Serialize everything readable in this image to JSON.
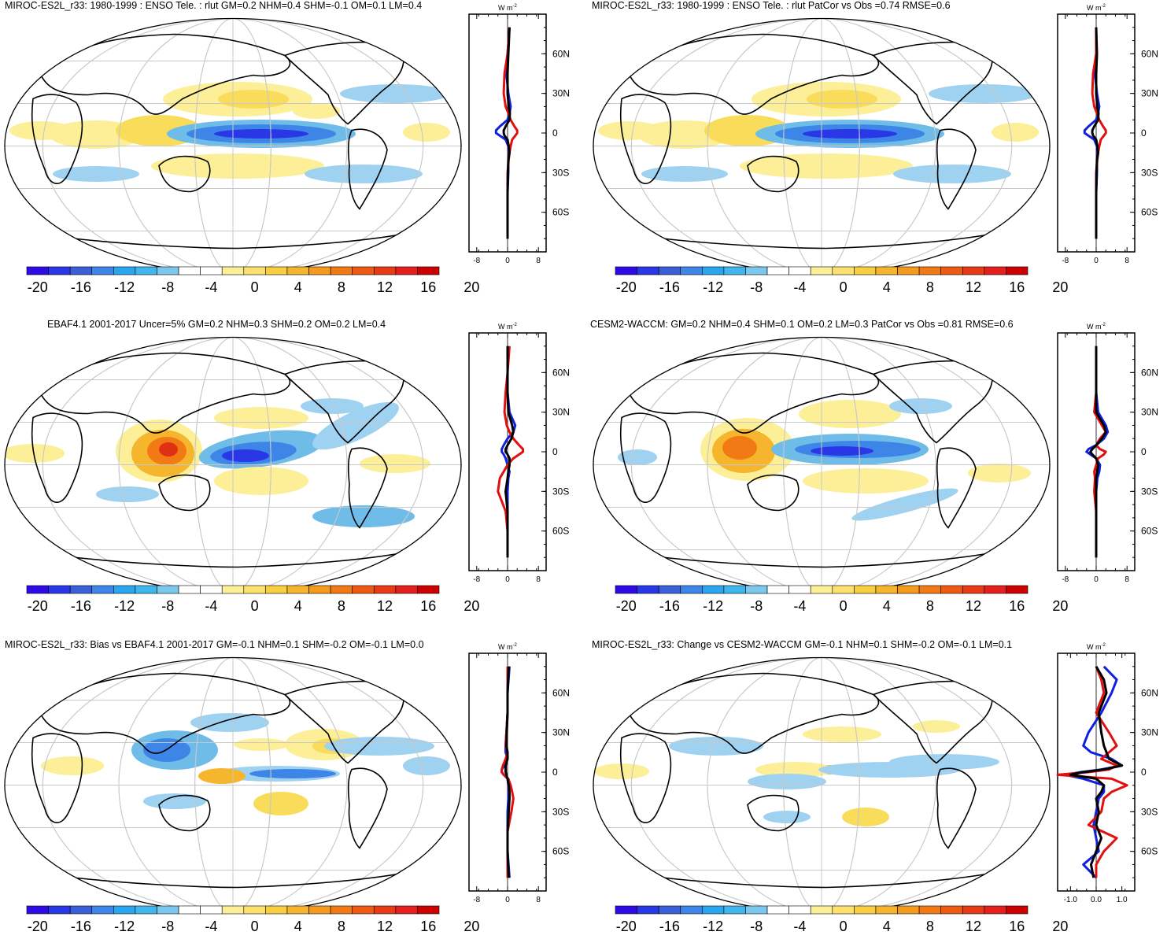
{
  "page": {
    "units_label": "W m",
    "units_exp": "-2",
    "lat_ticks": [
      "60N",
      "30N",
      "0",
      "30S",
      "60S"
    ],
    "colorbar_labels": [
      "-20",
      "-16",
      "-12",
      "-8",
      "-4",
      "0",
      "4",
      "8",
      "12",
      "16",
      "20"
    ],
    "colorbar_colors": [
      "#2d0ae6",
      "#2a37e6",
      "#3a5fd8",
      "#3d86e8",
      "#2aa6ee",
      "#3fb6ee",
      "#7ac8ee",
      "#ffffff",
      "#ffffff",
      "#fcef98",
      "#fce070",
      "#f8cf40",
      "#f5b52c",
      "#f49a1c",
      "#f27a14",
      "#ee5a14",
      "#e83a14",
      "#e51e1e",
      "#cc0000"
    ]
  },
  "chart_data": [
    {
      "type": "map+profile",
      "title": "MIROC-ES2L_r33: 1980-1999 : ENSO Tele. : rlut GM=0.2 NHM=0.4 SHM=-0.1 OM=0.1 LM=0.4",
      "profile_xticks": [
        "-8",
        "0",
        "8"
      ],
      "profile_xlim": [
        -10,
        10
      ],
      "series": [
        {
          "name": "blue",
          "color": "#1020e0",
          "lat": [
            80,
            60,
            45,
            30,
            20,
            15,
            10,
            5,
            2,
            0,
            -2,
            -5,
            -10,
            -15,
            -20,
            -30,
            -45,
            -60,
            -80
          ],
          "values": [
            0.5,
            0,
            -0.3,
            0.2,
            0.8,
            0.5,
            0,
            -2,
            -3,
            -3,
            -2,
            -0.5,
            0.2,
            0.4,
            0.2,
            0.2,
            0,
            0,
            0
          ]
        },
        {
          "name": "red",
          "color": "#e01010",
          "lat": [
            80,
            60,
            45,
            30,
            20,
            15,
            10,
            5,
            2,
            0,
            -2,
            -5,
            -10,
            -15,
            -20,
            -30,
            -45,
            -60,
            -80
          ],
          "values": [
            0.5,
            0,
            -0.8,
            -1,
            -0.5,
            0.2,
            0.8,
            1.8,
            2.5,
            2.5,
            2,
            1.2,
            0.8,
            0.5,
            0.3,
            0,
            0,
            0,
            0
          ]
        },
        {
          "name": "black",
          "color": "#000000",
          "lat": [
            80,
            60,
            45,
            30,
            20,
            15,
            10,
            5,
            2,
            0,
            -2,
            -5,
            -10,
            -15,
            -20,
            -30,
            -45,
            -60,
            -80
          ],
          "values": [
            0.5,
            0.2,
            0,
            0,
            0.3,
            0.6,
            0.5,
            -0.5,
            -1,
            -1,
            -0.8,
            0,
            0.3,
            0.5,
            0.2,
            0.1,
            0,
            0,
            0
          ]
        }
      ]
    },
    {
      "type": "map+profile",
      "title": "MIROC-ES2L_r33: 1980-1999 : ENSO Tele. : rlut PatCor vs Obs =0.74 RMSE=0.6",
      "profile_xticks": [
        "-8",
        "0",
        "8"
      ],
      "profile_xlim": [
        -10,
        10
      ],
      "series": [
        {
          "name": "blue",
          "color": "#1020e0",
          "lat": [
            80,
            60,
            45,
            30,
            20,
            15,
            10,
            5,
            2,
            0,
            -2,
            -5,
            -10,
            -15,
            -20,
            -30,
            -45,
            -60,
            -80
          ],
          "values": [
            0,
            0,
            -0.3,
            0.2,
            0.8,
            0.5,
            0,
            -2,
            -3,
            -3,
            -2,
            -0.5,
            0.2,
            0.4,
            0.2,
            0.2,
            0,
            0,
            0
          ]
        },
        {
          "name": "red",
          "color": "#e01010",
          "lat": [
            80,
            60,
            45,
            30,
            20,
            15,
            10,
            5,
            2,
            0,
            -2,
            -5,
            -10,
            -15,
            -20,
            -30,
            -45,
            -60,
            -80
          ],
          "values": [
            0,
            0,
            -0.8,
            -1,
            -0.5,
            0.2,
            0.8,
            1.8,
            2.5,
            2.5,
            2,
            1.2,
            0.8,
            0.5,
            0.3,
            0,
            0,
            0,
            0
          ]
        },
        {
          "name": "black",
          "color": "#000000",
          "lat": [
            80,
            60,
            45,
            30,
            20,
            15,
            10,
            5,
            2,
            0,
            -2,
            -5,
            -10,
            -15,
            -20,
            -30,
            -45,
            -60,
            -80
          ],
          "values": [
            0,
            0.2,
            0,
            0,
            0.3,
            0.6,
            0.5,
            -0.5,
            -1,
            -1,
            -0.8,
            0,
            0.3,
            0.5,
            0.2,
            0.1,
            0,
            0,
            0
          ]
        }
      ]
    },
    {
      "type": "map+profile",
      "title": "EBAF4.1 2001-2017 Uncer=5% GM=0.2 NHM=0.3 SHM=0.2 OM=0.2 LM=0.4",
      "profile_xticks": [
        "-8",
        "0",
        "8"
      ],
      "profile_xlim": [
        -10,
        10
      ],
      "series": [
        {
          "name": "blue",
          "color": "#1020e0",
          "lat": [
            80,
            60,
            45,
            30,
            20,
            15,
            10,
            5,
            2,
            0,
            -2,
            -5,
            -10,
            -15,
            -20,
            -30,
            -45,
            -60,
            -80
          ],
          "values": [
            0,
            0,
            0,
            0.5,
            2,
            1.5,
            0,
            -1,
            -1.5,
            -1.5,
            -1,
            -0.5,
            0,
            0.5,
            0.2,
            0,
            0,
            0,
            0
          ]
        },
        {
          "name": "red",
          "color": "#e01010",
          "lat": [
            80,
            60,
            45,
            30,
            20,
            15,
            10,
            5,
            2,
            0,
            -2,
            -5,
            -10,
            -15,
            -20,
            -30,
            -45,
            -60,
            -80
          ],
          "values": [
            0.5,
            0,
            -0.5,
            -0.8,
            -0.2,
            0.5,
            1.5,
            3,
            4,
            4,
            3,
            1.5,
            0,
            -1,
            -2,
            -2.5,
            -0.5,
            0,
            0
          ]
        },
        {
          "name": "black",
          "color": "#000000",
          "lat": [
            80,
            60,
            45,
            30,
            20,
            15,
            10,
            5,
            2,
            0,
            -2,
            -5,
            -10,
            -15,
            -20,
            -30,
            -45,
            -60,
            -80
          ],
          "values": [
            0,
            0,
            0,
            0.2,
            1.2,
            1.5,
            1,
            0,
            -0.5,
            -0.5,
            0,
            0.5,
            0.5,
            0.2,
            0,
            -0.5,
            0,
            0,
            0
          ]
        }
      ]
    },
    {
      "type": "map+profile",
      "title": "CESM2-WACCM: GM=0.2 NHM=0.4 SHM=0.1 OM=0.2 LM=0.3 PatCor vs Obs =0.81 RMSE=0.6",
      "profile_xticks": [
        "-8",
        "0",
        "8"
      ],
      "profile_xlim": [
        -10,
        10
      ],
      "series": [
        {
          "name": "blue",
          "color": "#1020e0",
          "lat": [
            80,
            60,
            45,
            30,
            20,
            15,
            10,
            5,
            2,
            0,
            -2,
            -5,
            -10,
            -15,
            -20,
            -30,
            -45,
            -60,
            -80
          ],
          "values": [
            0,
            0,
            0,
            0.5,
            2.5,
            3,
            2,
            0,
            -2,
            -2.5,
            -1.5,
            0,
            1,
            0.8,
            0.3,
            0,
            0,
            0,
            0
          ]
        },
        {
          "name": "red",
          "color": "#e01010",
          "lat": [
            80,
            60,
            45,
            30,
            20,
            15,
            10,
            5,
            2,
            0,
            -2,
            -5,
            -10,
            -15,
            -20,
            -30,
            -45,
            -60,
            -80
          ],
          "values": [
            0,
            0,
            0,
            -0.5,
            1.5,
            2.5,
            1,
            0,
            1,
            2.5,
            2,
            0.5,
            0,
            -0.5,
            -0.3,
            -0.5,
            0,
            0,
            0
          ]
        },
        {
          "name": "black",
          "color": "#000000",
          "lat": [
            80,
            60,
            45,
            30,
            20,
            15,
            10,
            5,
            2,
            0,
            -2,
            -5,
            -10,
            -15,
            -20,
            -30,
            -45,
            -60,
            -80
          ],
          "values": [
            0,
            0,
            0,
            0,
            2,
            2.5,
            1.5,
            0,
            -1,
            -1.5,
            -1,
            0,
            0.5,
            0.3,
            0,
            0,
            0,
            0,
            0
          ]
        }
      ]
    },
    {
      "type": "map+profile",
      "title": "MIROC-ES2L_r33: Bias vs EBAF4.1 2001-2017 GM=-0.1 NHM=0.1 SHM=-0.2 OM=-0.1 LM=0.0",
      "profile_xticks": [
        "-8",
        "0",
        "8"
      ],
      "profile_xlim": [
        -10,
        10
      ],
      "series": [
        {
          "name": "blue",
          "color": "#1020e0",
          "lat": [
            80,
            60,
            45,
            30,
            20,
            15,
            10,
            5,
            2,
            0,
            -2,
            -5,
            -10,
            -15,
            -20,
            -30,
            -45,
            -60,
            -80
          ],
          "values": [
            0.5,
            0,
            0,
            -0.3,
            -0.5,
            -0.5,
            0,
            -0.8,
            -1.5,
            -1.5,
            -1,
            0,
            0.2,
            0.3,
            0.2,
            0,
            0,
            0,
            0.5
          ]
        },
        {
          "name": "red",
          "color": "#e01010",
          "lat": [
            80,
            60,
            45,
            30,
            20,
            15,
            10,
            5,
            2,
            0,
            -2,
            -5,
            -10,
            -15,
            -20,
            -30,
            -45,
            -60,
            -80
          ],
          "values": [
            0,
            0,
            0,
            -0.3,
            -0.5,
            0,
            -0.5,
            -1.2,
            -1.5,
            -1.5,
            -1,
            0.2,
            0.8,
            1.2,
            1.5,
            1,
            0,
            0,
            0
          ]
        },
        {
          "name": "black",
          "color": "#000000",
          "lat": [
            80,
            60,
            45,
            30,
            20,
            15,
            10,
            5,
            2,
            0,
            -2,
            -5,
            -10,
            -15,
            -20,
            -30,
            -45,
            -60,
            -80
          ],
          "values": [
            0.3,
            0,
            0,
            -0.2,
            -0.3,
            0,
            0,
            -0.5,
            -0.5,
            -0.5,
            -0.3,
            0,
            0.3,
            0.5,
            0.5,
            0.3,
            0,
            0,
            0.3
          ]
        }
      ]
    },
    {
      "type": "map+profile",
      "title": "MIROC-ES2L_r33: Change vs CESM2-WACCM GM=-0.1 NHM=0.1 SHM=-0.2 OM=-0.1 LM=0.1",
      "profile_xticks": [
        "-1.0",
        "0.0",
        "1.0"
      ],
      "profile_xlim": [
        -1.5,
        1.5
      ],
      "series": [
        {
          "name": "blue",
          "color": "#1020e0",
          "lat": [
            80,
            70,
            60,
            45,
            30,
            20,
            15,
            10,
            5,
            2,
            0,
            -2,
            -5,
            -10,
            -15,
            -20,
            -30,
            -40,
            -50,
            -60,
            -70,
            -80
          ],
          "values": [
            0.3,
            0.8,
            0.6,
            0.2,
            -0.3,
            -0.5,
            -0.2,
            0.6,
            1.0,
            0.2,
            -0.6,
            -1.2,
            -0.5,
            0.3,
            0.3,
            0.1,
            0,
            -0.1,
            0,
            0.1,
            -0.5,
            0
          ]
        },
        {
          "name": "red",
          "color": "#e01010",
          "lat": [
            80,
            70,
            60,
            45,
            30,
            20,
            15,
            10,
            5,
            2,
            0,
            -2,
            -5,
            -10,
            -15,
            -20,
            -30,
            -40,
            -50,
            -60,
            -70,
            -80
          ],
          "values": [
            0,
            0.2,
            0.3,
            0,
            0.5,
            0.8,
            0.5,
            0.2,
            0.8,
            0.5,
            -0.3,
            -1.5,
            0.6,
            1.2,
            0.6,
            0.3,
            0.2,
            -0.3,
            0.8,
            0.3,
            0,
            0
          ]
        },
        {
          "name": "black",
          "color": "#000000",
          "lat": [
            80,
            70,
            60,
            45,
            30,
            20,
            15,
            10,
            5,
            2,
            0,
            -2,
            -5,
            -10,
            -15,
            -20,
            -30,
            -40,
            -50,
            -60,
            -70,
            -80
          ],
          "values": [
            0,
            0.3,
            0.4,
            0.1,
            0.2,
            0.3,
            0.4,
            0.5,
            1.0,
            0.3,
            -0.5,
            -1.0,
            0,
            0.3,
            0.2,
            0,
            0.1,
            0,
            0.2,
            0,
            -0.2,
            -0.1
          ]
        }
      ]
    }
  ]
}
